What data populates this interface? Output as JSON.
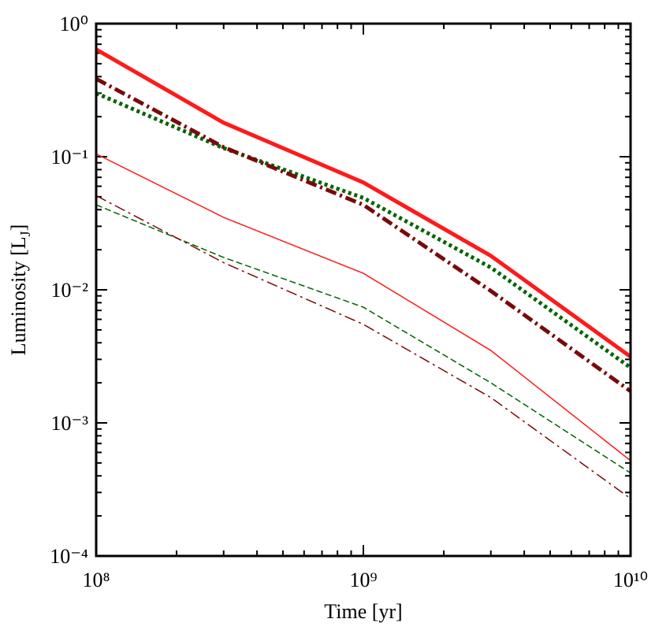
{
  "chart_data": {
    "type": "line",
    "xlabel": "Time [yr]",
    "ylabel": [
      "Luminosity [L",
      "J",
      "]"
    ],
    "xscale": "log",
    "yscale": "log",
    "xlim": [
      100000000.0,
      10000000000.0
    ],
    "ylim": [
      0.0001,
      1
    ],
    "xticks": [
      {
        "value": 100000000.0,
        "label": "10⁸"
      },
      {
        "value": 1000000000.0,
        "label": "10⁹"
      },
      {
        "value": 10000000000.0,
        "label": "10¹⁰"
      }
    ],
    "yticks": [
      {
        "value": 0.0001,
        "label": "10⁻⁴"
      },
      {
        "value": 0.001,
        "label": "10⁻³"
      },
      {
        "value": 0.01,
        "label": "10⁻²"
      },
      {
        "value": 0.1,
        "label": "10⁻¹"
      },
      {
        "value": 1,
        "label": "10⁰"
      }
    ],
    "xminorticks": [
      200000000.0,
      300000000.0,
      400000000.0,
      500000000.0,
      600000000.0,
      700000000.0,
      800000000.0,
      900000000.0,
      2000000000.0,
      3000000000.0,
      4000000000.0,
      5000000000.0,
      6000000000.0,
      7000000000.0,
      8000000000.0,
      9000000000.0
    ],
    "yminorticks": [
      0.0002,
      0.0003,
      0.0004,
      0.0005,
      0.0006,
      0.0007,
      0.0008,
      0.0009,
      0.002,
      0.003,
      0.004,
      0.005,
      0.006,
      0.007,
      0.008,
      0.009,
      0.02,
      0.03,
      0.04,
      0.05,
      0.06,
      0.07,
      0.08,
      0.09,
      0.2,
      0.3,
      0.4,
      0.5,
      0.6,
      0.7,
      0.8,
      0.9
    ],
    "x": [
      100000000.0,
      300000000.0,
      1000000000.0,
      3000000000.0,
      10000000000.0
    ],
    "series": [
      {
        "color": "#ff1a1a",
        "width": 5,
        "dash": "solid",
        "values": [
          0.64,
          0.18,
          0.064,
          0.018,
          0.00314
        ]
      },
      {
        "color": "#006400",
        "width": 5,
        "dash": "dotted",
        "values": [
          0.3,
          0.116,
          0.049,
          0.0147,
          0.0026
        ]
      },
      {
        "color": "#7a0a0a",
        "width": 5,
        "dash": "dashdot",
        "values": [
          0.385,
          0.118,
          0.0435,
          0.0098,
          0.00173
        ]
      },
      {
        "color": "#ff1a1a",
        "width": 1.5,
        "dash": "solid",
        "values": [
          0.105,
          0.035,
          0.0133,
          0.0035,
          0.00052
        ]
      },
      {
        "color": "#006400",
        "width": 1.5,
        "dash": "dashed",
        "values": [
          0.0435,
          0.0175,
          0.0074,
          0.002,
          0.00042
        ]
      },
      {
        "color": "#7a0a0a",
        "width": 1.5,
        "dash": "dashdot",
        "values": [
          0.051,
          0.016,
          0.0055,
          0.00155,
          0.00027
        ]
      }
    ]
  }
}
